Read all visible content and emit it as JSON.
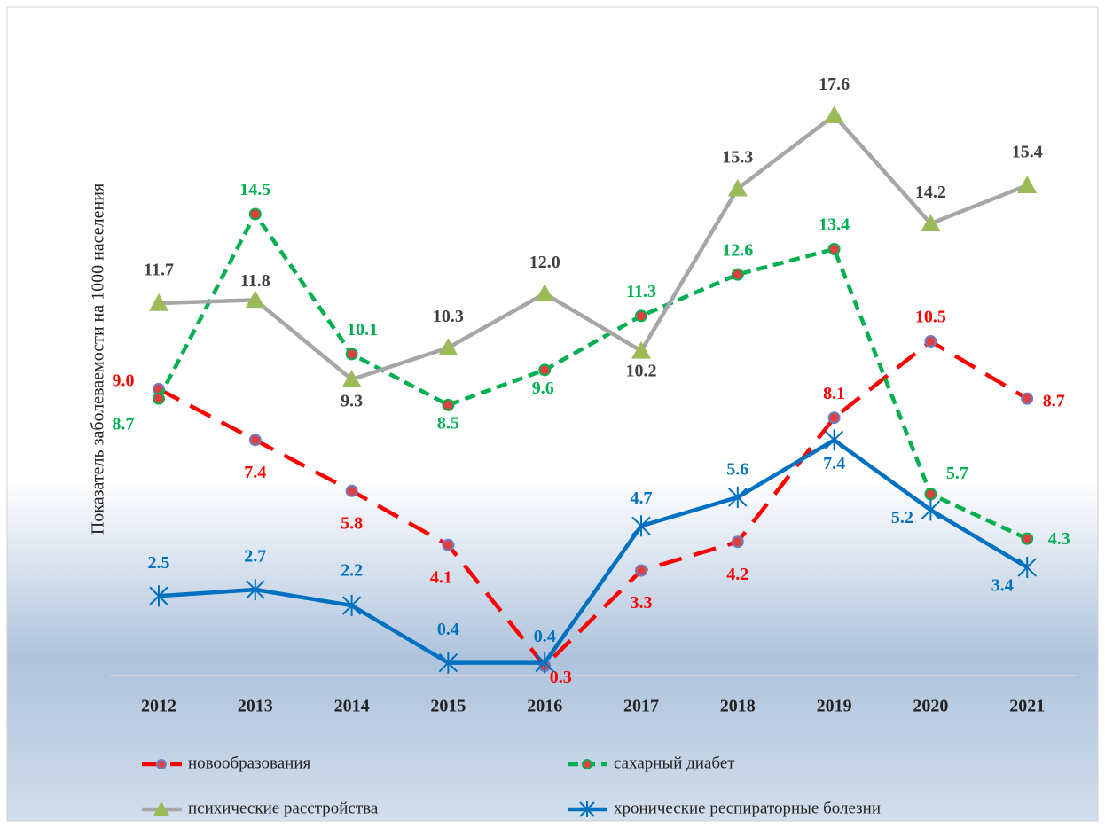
{
  "chart_data": {
    "type": "line",
    "y_label": "Показатель заболеваемости на 1000 населения",
    "categories": [
      "2012",
      "2013",
      "2014",
      "2015",
      "2016",
      "2017",
      "2018",
      "2019",
      "2020",
      "2021"
    ],
    "ylim": [
      0,
      20
    ],
    "series": [
      {
        "name": "новообразования",
        "color": "#ff0000",
        "label_color": "#ff0000",
        "dash": "long",
        "marker": "circle",
        "values": [
          9.0,
          7.4,
          5.8,
          4.1,
          0.3,
          3.3,
          4.2,
          8.1,
          10.5,
          8.7
        ],
        "value_labels": [
          "9.0",
          "7.4",
          "5.8",
          "4.1",
          "0.3",
          "3.3",
          "4.2",
          "8.1",
          "10.5",
          "8.7"
        ]
      },
      {
        "name": "сахарный диабет",
        "color": "#00b050",
        "label_color": "#00b050",
        "dash": "short",
        "marker": "circle",
        "values": [
          8.7,
          14.5,
          10.1,
          8.5,
          9.6,
          11.3,
          12.6,
          13.4,
          5.7,
          4.3
        ],
        "value_labels": [
          "8.7",
          "14.5",
          "10.1",
          "8.5",
          "9.6",
          "11.3",
          "12.6",
          "13.4",
          "5.7",
          "4.3"
        ]
      },
      {
        "name": "психические расстройства",
        "color": "#a6a6a6",
        "label_color": "#404040",
        "dash": "solid",
        "marker": "triangle",
        "values": [
          11.7,
          11.8,
          9.3,
          10.3,
          12.0,
          10.2,
          15.3,
          17.6,
          14.2,
          15.4
        ],
        "value_labels": [
          "11.7",
          "11.8",
          "9.3",
          "10.3",
          "12.0",
          "10.2",
          "15.3",
          "17.6",
          "14.2",
          "15.4"
        ]
      },
      {
        "name": "хронические респираторные болезни",
        "color": "#0070c0",
        "label_color": "#0070c0",
        "dash": "solid",
        "marker": "asterisk",
        "values": [
          2.5,
          2.7,
          2.2,
          0.4,
          0.4,
          4.7,
          5.6,
          7.4,
          5.2,
          3.4
        ],
        "value_labels": [
          "2.5",
          "2.7",
          "2.2",
          "0.4",
          "0.4",
          "4.7",
          "5.6",
          "7.4",
          "5.2",
          "3.4"
        ]
      }
    ]
  }
}
